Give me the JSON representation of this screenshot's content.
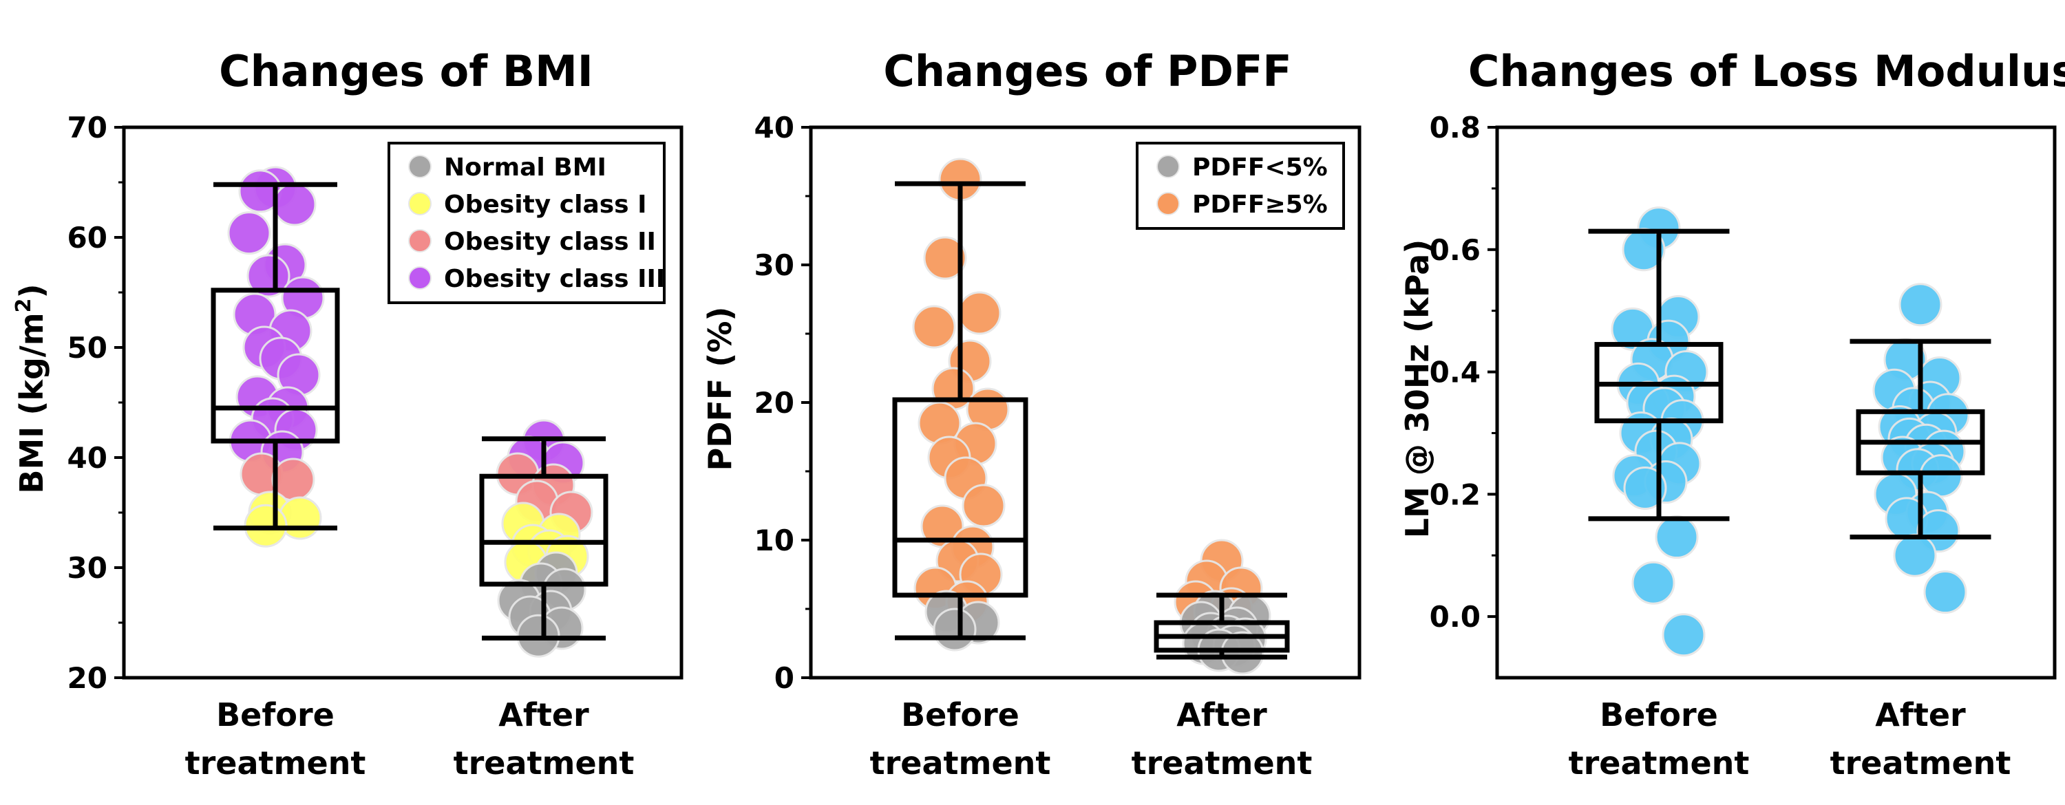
{
  "chart_data": [
    {
      "type": "box",
      "title": "Changes of BMI",
      "ylabel_main": "BMI (kg/m",
      "ylabel_sup": "2",
      "ylabel_close": ")",
      "ylim": [
        20,
        70
      ],
      "yticks": [
        "20",
        "30",
        "40",
        "50",
        "60",
        "70"
      ],
      "categories": [
        {
          "line1": "Before",
          "line2": "treatment"
        },
        {
          "line1": "After",
          "line2": "treatment"
        }
      ],
      "boxes": [
        {
          "whisker_low": 33.6,
          "q1": 41.5,
          "median": 44.5,
          "q3": 55.2,
          "whisker_high": 64.8
        },
        {
          "whisker_low": 23.6,
          "q1": 28.5,
          "median": 32.3,
          "q3": 38.3,
          "whisker_high": 41.7
        }
      ],
      "legend": [
        {
          "label": "Normal BMI",
          "color": "#a6a6a6"
        },
        {
          "label": "Obesity class I",
          "color": "#ffff66"
        },
        {
          "label": "Obesity class II",
          "color": "#f28b8b"
        },
        {
          "label": "Obesity class III",
          "color": "#bf5af2"
        }
      ],
      "points": [
        [
          {
            "y": 64.5,
            "c": 3
          },
          {
            "y": 64.2,
            "c": 3
          },
          {
            "y": 63.0,
            "c": 3
          },
          {
            "y": 60.4,
            "c": 3
          },
          {
            "y": 57.5,
            "c": 3
          },
          {
            "y": 56.5,
            "c": 3
          },
          {
            "y": 54.5,
            "c": 3
          },
          {
            "y": 53.0,
            "c": 3
          },
          {
            "y": 51.5,
            "c": 3
          },
          {
            "y": 50.0,
            "c": 3
          },
          {
            "y": 49.0,
            "c": 3
          },
          {
            "y": 47.5,
            "c": 3
          },
          {
            "y": 45.5,
            "c": 3
          },
          {
            "y": 44.5,
            "c": 3
          },
          {
            "y": 43.5,
            "c": 3
          },
          {
            "y": 42.5,
            "c": 3
          },
          {
            "y": 41.5,
            "c": 3
          },
          {
            "y": 40.5,
            "c": 3
          },
          {
            "y": 38.5,
            "c": 2
          },
          {
            "y": 38.0,
            "c": 2
          },
          {
            "y": 35.0,
            "c": 1
          },
          {
            "y": 34.5,
            "c": 1
          },
          {
            "y": 33.8,
            "c": 1
          }
        ],
        [
          {
            "y": 41.5,
            "c": 3
          },
          {
            "y": 40.0,
            "c": 3
          },
          {
            "y": 39.5,
            "c": 3
          },
          {
            "y": 38.5,
            "c": 2
          },
          {
            "y": 37.5,
            "c": 2
          },
          {
            "y": 36.0,
            "c": 2
          },
          {
            "y": 35.0,
            "c": 2
          },
          {
            "y": 34.0,
            "c": 1
          },
          {
            "y": 33.0,
            "c": 1
          },
          {
            "y": 32.0,
            "c": 1
          },
          {
            "y": 31.5,
            "c": 1
          },
          {
            "y": 31.0,
            "c": 1
          },
          {
            "y": 30.5,
            "c": 1
          },
          {
            "y": 29.5,
            "c": 0
          },
          {
            "y": 28.5,
            "c": 0
          },
          {
            "y": 28.0,
            "c": 0
          },
          {
            "y": 27.0,
            "c": 0
          },
          {
            "y": 26.0,
            "c": 0
          },
          {
            "y": 25.5,
            "c": 0
          },
          {
            "y": 24.5,
            "c": 0
          },
          {
            "y": 23.8,
            "c": 0
          }
        ]
      ]
    },
    {
      "type": "box",
      "title": "Changes of PDFF",
      "ylabel_main": "PDFF (%)",
      "ylabel_sup": "",
      "ylabel_close": "",
      "ylim": [
        0,
        40
      ],
      "yticks": [
        "0",
        "10",
        "20",
        "30",
        "40"
      ],
      "categories": [
        {
          "line1": "Before",
          "line2": "treatment"
        },
        {
          "line1": "After",
          "line2": "treatment"
        }
      ],
      "boxes": [
        {
          "whisker_low": 2.9,
          "q1": 6.0,
          "median": 10.0,
          "q3": 20.2,
          "whisker_high": 35.9
        },
        {
          "whisker_low": 1.5,
          "q1": 2.0,
          "median": 3.0,
          "q3": 4.0,
          "whisker_high": 6.0
        }
      ],
      "legend": [
        {
          "label": "PDFF<5%",
          "color": "#a6a6a6"
        },
        {
          "label": "PDFF≥5%",
          "color": "#f79a5e"
        }
      ],
      "points": [
        [
          {
            "y": 36.2,
            "c": 1
          },
          {
            "y": 30.5,
            "c": 1
          },
          {
            "y": 26.5,
            "c": 1
          },
          {
            "y": 25.5,
            "c": 1
          },
          {
            "y": 23.0,
            "c": 1
          },
          {
            "y": 21.0,
            "c": 1
          },
          {
            "y": 19.5,
            "c": 1
          },
          {
            "y": 18.5,
            "c": 1
          },
          {
            "y": 17.0,
            "c": 1
          },
          {
            "y": 16.0,
            "c": 1
          },
          {
            "y": 14.5,
            "c": 1
          },
          {
            "y": 12.5,
            "c": 1
          },
          {
            "y": 11.0,
            "c": 1
          },
          {
            "y": 9.5,
            "c": 1
          },
          {
            "y": 8.5,
            "c": 1
          },
          {
            "y": 7.5,
            "c": 1
          },
          {
            "y": 6.5,
            "c": 1
          },
          {
            "y": 5.5,
            "c": 1
          },
          {
            "y": 4.8,
            "c": 0
          },
          {
            "y": 4.0,
            "c": 0
          },
          {
            "y": 3.5,
            "c": 0
          }
        ],
        [
          {
            "y": 8.5,
            "c": 1
          },
          {
            "y": 7.0,
            "c": 1
          },
          {
            "y": 6.5,
            "c": 1
          },
          {
            "y": 5.5,
            "c": 1
          },
          {
            "y": 5.0,
            "c": 1
          },
          {
            "y": 4.8,
            "c": 0
          },
          {
            "y": 4.5,
            "c": 0
          },
          {
            "y": 4.0,
            "c": 0
          },
          {
            "y": 3.6,
            "c": 0
          },
          {
            "y": 3.2,
            "c": 0
          },
          {
            "y": 3.0,
            "c": 0
          },
          {
            "y": 2.8,
            "c": 0
          },
          {
            "y": 2.5,
            "c": 0
          },
          {
            "y": 2.3,
            "c": 0
          },
          {
            "y": 2.0,
            "c": 0
          },
          {
            "y": 1.8,
            "c": 0
          }
        ]
      ]
    },
    {
      "type": "box",
      "title": "Changes of Loss Modulus",
      "ylabel_main": "LM @ 30Hz (kPa)",
      "ylabel_sup": "",
      "ylabel_close": "",
      "ylim": [
        -0.1,
        0.8
      ],
      "yticks": [
        "0.0",
        "0.2",
        "0.4",
        "0.6",
        "0.8"
      ],
      "categories": [
        {
          "line1": "Before",
          "line2": "treatment"
        },
        {
          "line1": "After",
          "line2": "treatment"
        }
      ],
      "boxes": [
        {
          "whisker_low": 0.16,
          "q1": 0.32,
          "median": 0.38,
          "q3": 0.445,
          "whisker_high": 0.63
        },
        {
          "whisker_low": 0.13,
          "q1": 0.235,
          "median": 0.285,
          "q3": 0.335,
          "whisker_high": 0.45
        }
      ],
      "legend": [],
      "point_color": "#5bc8f5",
      "points": [
        [
          {
            "y": 0.635,
            "c": 0
          },
          {
            "y": 0.6,
            "c": 0
          },
          {
            "y": 0.49,
            "c": 0
          },
          {
            "y": 0.47,
            "c": 0
          },
          {
            "y": 0.45,
            "c": 0
          },
          {
            "y": 0.42,
            "c": 0
          },
          {
            "y": 0.4,
            "c": 0
          },
          {
            "y": 0.38,
            "c": 0
          },
          {
            "y": 0.36,
            "c": 0
          },
          {
            "y": 0.35,
            "c": 0
          },
          {
            "y": 0.34,
            "c": 0
          },
          {
            "y": 0.32,
            "c": 0
          },
          {
            "y": 0.3,
            "c": 0
          },
          {
            "y": 0.29,
            "c": 0
          },
          {
            "y": 0.27,
            "c": 0
          },
          {
            "y": 0.25,
            "c": 0
          },
          {
            "y": 0.23,
            "c": 0
          },
          {
            "y": 0.22,
            "c": 0
          },
          {
            "y": 0.21,
            "c": 0
          },
          {
            "y": 0.13,
            "c": 0
          },
          {
            "y": 0.055,
            "c": 0
          },
          {
            "y": -0.03,
            "c": 0
          }
        ],
        [
          {
            "y": 0.51,
            "c": 0
          },
          {
            "y": 0.42,
            "c": 0
          },
          {
            "y": 0.39,
            "c": 0
          },
          {
            "y": 0.37,
            "c": 0
          },
          {
            "y": 0.35,
            "c": 0
          },
          {
            "y": 0.34,
            "c": 0
          },
          {
            "y": 0.33,
            "c": 0
          },
          {
            "y": 0.31,
            "c": 0
          },
          {
            "y": 0.3,
            "c": 0
          },
          {
            "y": 0.29,
            "c": 0
          },
          {
            "y": 0.28,
            "c": 0
          },
          {
            "y": 0.27,
            "c": 0
          },
          {
            "y": 0.26,
            "c": 0
          },
          {
            "y": 0.25,
            "c": 0
          },
          {
            "y": 0.24,
            "c": 0
          },
          {
            "y": 0.23,
            "c": 0
          },
          {
            "y": 0.2,
            "c": 0
          },
          {
            "y": 0.17,
            "c": 0
          },
          {
            "y": 0.16,
            "c": 0
          },
          {
            "y": 0.14,
            "c": 0
          },
          {
            "y": 0.1,
            "c": 0
          },
          {
            "y": 0.04,
            "c": 0
          }
        ]
      ]
    }
  ]
}
